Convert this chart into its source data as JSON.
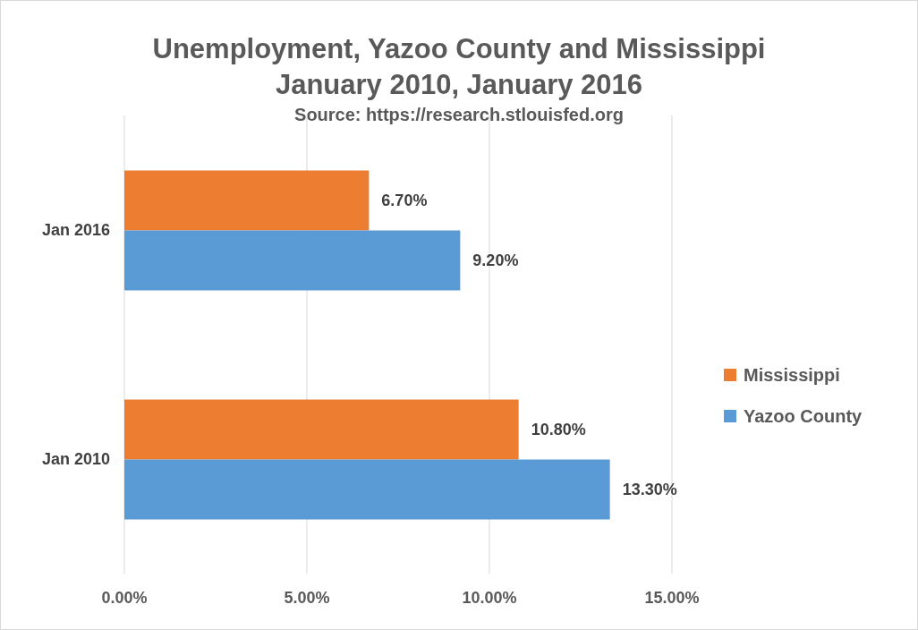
{
  "chart_data": {
    "type": "bar",
    "orientation": "horizontal",
    "title": "Unemployment, Yazoo County  and Mississippi\nJanuary 2010, January 2016",
    "annotations": [
      "Source: https://research.stlouisfed.org"
    ],
    "categories": [
      "Jan 2016",
      "Jan 2010"
    ],
    "series": [
      {
        "name": "Mississippi",
        "color": "#ed7d31",
        "values": [
          6.7,
          10.8
        ],
        "value_labels": [
          "6.70%",
          "10.80%"
        ]
      },
      {
        "name": "Yazoo County",
        "color": "#5b9bd5",
        "values": [
          9.2,
          13.3
        ],
        "value_labels": [
          "9.20%",
          "13.30%"
        ]
      }
    ],
    "xlim": [
      0,
      15
    ],
    "xticks": [
      {
        "value": 0,
        "label": "0.00%"
      },
      {
        "value": 5,
        "label": "5.00%"
      },
      {
        "value": 10,
        "label": "10.00%"
      },
      {
        "value": 15,
        "label": "15.00%"
      }
    ],
    "grid": "x",
    "legend": "right"
  }
}
